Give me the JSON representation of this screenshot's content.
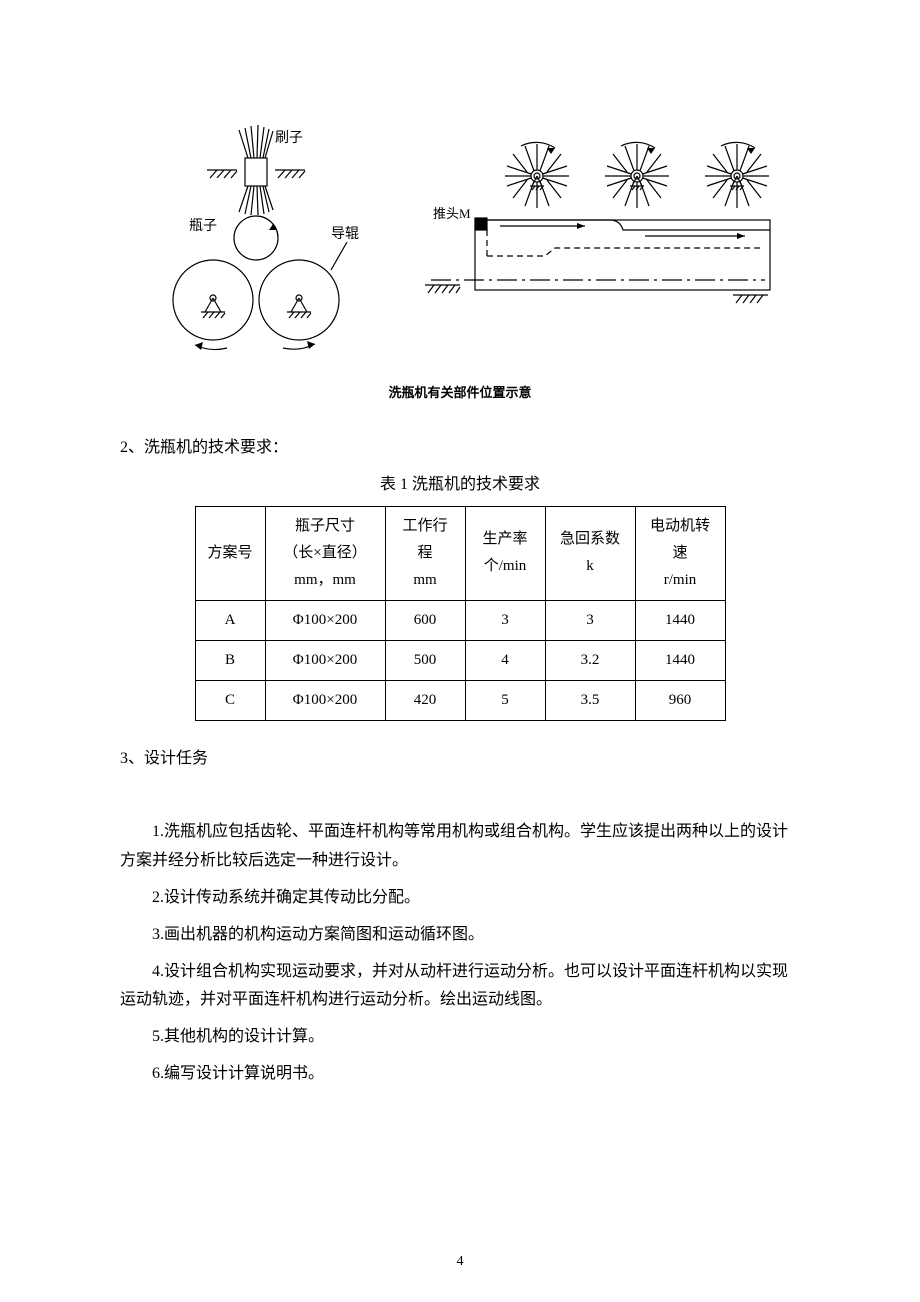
{
  "figure": {
    "caption": "洗瓶机有关部件位置示意",
    "labels": {
      "brush": "刷子",
      "bottle": "瓶子",
      "guide_roller": "导辊",
      "pusher": "推头M"
    },
    "colors": {
      "stroke": "#000000",
      "bg": "#ffffff"
    },
    "left_diagram": {
      "brush_line_count": 12,
      "bottle_radius": 22,
      "roller_radius": 38
    },
    "right_diagram": {
      "brush_count": 3,
      "brush_line_count": 20,
      "brush_radius_inner": 6,
      "brush_radius_outer": 30
    }
  },
  "section2": {
    "heading": "2、洗瓶机的技术要求：",
    "table_caption": "表 1 洗瓶机的技术要求"
  },
  "table": {
    "headers": {
      "plan": "方案号",
      "size_l1": "瓶子尺寸",
      "size_l2": "（长×直径）",
      "size_l3": "mm，mm",
      "stroke_l1": "工作行",
      "stroke_l2": "程",
      "stroke_l3": "mm",
      "rate_l1": "生产率",
      "rate_l2": "个/min",
      "k_l1": "急回系数",
      "k_l2": "k",
      "motor_l1": "电动机转",
      "motor_l2": "速",
      "motor_l3": "r/min"
    },
    "rows": [
      {
        "plan": "A",
        "size": "Φ100×200",
        "stroke": "600",
        "rate": "3",
        "k": "3",
        "motor": "1440"
      },
      {
        "plan": "B",
        "size": "Φ100×200",
        "stroke": "500",
        "rate": "4",
        "k": "3.2",
        "motor": "1440"
      },
      {
        "plan": "C",
        "size": "Φ100×200",
        "stroke": "420",
        "rate": "5",
        "k": "3.5",
        "motor": "960"
      }
    ]
  },
  "section3": {
    "heading": "3、设计任务",
    "items": [
      "1.洗瓶机应包括齿轮、平面连杆机构等常用机构或组合机构。学生应该提出两种以上的设计方案并经分析比较后选定一种进行设计。",
      "2.设计传动系统并确定其传动比分配。",
      "3.画出机器的机构运动方案简图和运动循环图。",
      "4.设计组合机构实现运动要求，并对从动杆进行运动分析。也可以设计平面连杆机构以实现运动轨迹，并对平面连杆机构进行运动分析。绘出运动线图。",
      "5.其他机构的设计计算。",
      "6.编写设计计算说明书。"
    ]
  },
  "page_number": "4"
}
